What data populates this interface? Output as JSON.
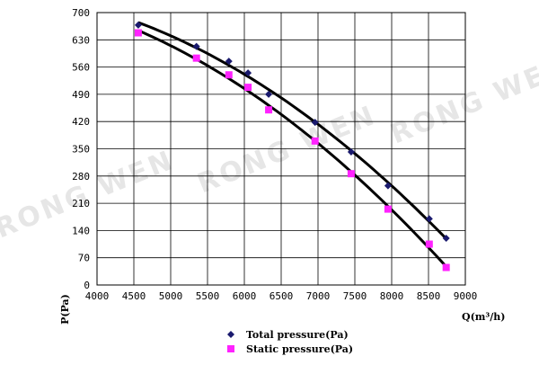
{
  "watermark": "RONG WEN",
  "chart_data": {
    "type": "scatter",
    "xlabel": "Q(m³/h)",
    "ylabel": "P(Pa)",
    "xlim": [
      4000,
      9000
    ],
    "ylim": [
      0,
      700
    ],
    "xticks": [
      4000,
      4500,
      5000,
      5500,
      6000,
      6500,
      7000,
      7500,
      8000,
      8500,
      9000
    ],
    "yticks": [
      0,
      70,
      140,
      210,
      280,
      350,
      420,
      490,
      560,
      630,
      700
    ],
    "grid": true,
    "legend_placement": "bottom-center",
    "series": [
      {
        "name": "Total pressure(Pa)",
        "marker": "diamond",
        "color": "#1a1a6e",
        "x": [
          4560,
          5350,
          5790,
          6050,
          6330,
          6960,
          7450,
          7950,
          8510,
          8740
        ],
        "y": [
          668,
          613,
          575,
          545,
          490,
          418,
          342,
          255,
          170,
          120
        ]
      },
      {
        "name": "Static pressure(Pa)",
        "marker": "square",
        "color": "#ff22ff",
        "x": [
          4560,
          5350,
          5790,
          6050,
          6330,
          6960,
          7450,
          7950,
          8510,
          8740
        ],
        "y": [
          648,
          583,
          540,
          508,
          450,
          370,
          286,
          195,
          105,
          45
        ]
      }
    ]
  }
}
